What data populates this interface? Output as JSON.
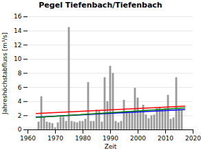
{
  "chart_data": {
    "type": "bar",
    "title": "Pegel Tiefenbach/Tiefenbach",
    "xlabel": "Zeit",
    "ylabel": "Jahreshöchstabfluss [m³/s]",
    "x": [
      1964,
      1965,
      1966,
      1967,
      1968,
      1969,
      1970,
      1971,
      1972,
      1973,
      1974,
      1975,
      1976,
      1977,
      1978,
      1979,
      1980,
      1981,
      1982,
      1983,
      1984,
      1985,
      1986,
      1987,
      1988,
      1989,
      1990,
      1991,
      1992,
      1993,
      1994,
      1995,
      1996,
      1997,
      1998,
      1999,
      2000,
      2001,
      2002,
      2003,
      2004,
      2005,
      2006,
      2007,
      2008,
      2009,
      2010,
      2011,
      2012,
      2013,
      2014,
      2015,
      2016
    ],
    "values": [
      1.1,
      4.7,
      1.8,
      1.1,
      1.0,
      0.9,
      0.3,
      1.0,
      1.9,
      1.8,
      1.2,
      14.5,
      1.2,
      1.1,
      1.0,
      1.2,
      1.2,
      1.5,
      6.7,
      1.2,
      1.2,
      2.8,
      2.7,
      1.1,
      7.4,
      4.0,
      9.0,
      8.0,
      1.2,
      1.0,
      1.2,
      4.2,
      2.6,
      2.5,
      2.6,
      5.9,
      4.5,
      2.7,
      3.5,
      2.1,
      1.6,
      2.0,
      2.1,
      3.0,
      3.2,
      2.9,
      3.0,
      4.9,
      1.5,
      1.7,
      7.4,
      2.9,
      2.8
    ],
    "color": "#999999",
    "lines": [
      {
        "color": "red",
        "x": [
          1963,
          2017
        ],
        "values": [
          2.3,
          3.35
        ]
      },
      {
        "color": "blue",
        "x": [
          1963,
          2017
        ],
        "values": [
          1.8,
          2.85
        ]
      },
      {
        "color": "green",
        "x": [
          1963,
          2017
        ],
        "values": [
          1.75,
          3.1
        ]
      }
    ],
    "xlim": [
      1960,
      2020
    ],
    "xticks": [
      1960,
      1970,
      1980,
      1990,
      2000,
      2010,
      2020
    ],
    "ylim": [
      0,
      16
    ],
    "yticks": [
      0,
      2,
      4,
      6,
      8,
      10,
      12,
      14,
      16
    ],
    "grid": "y"
  }
}
